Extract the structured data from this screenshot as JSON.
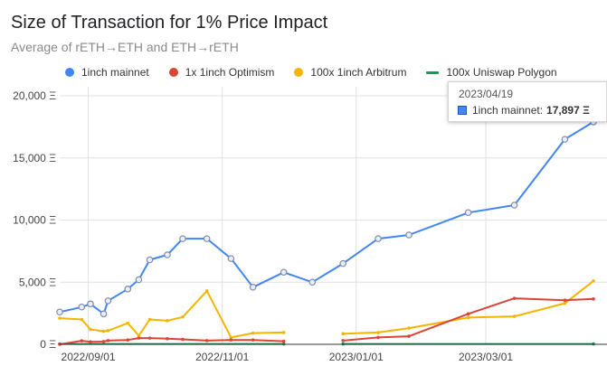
{
  "chart_data": {
    "type": "line",
    "title": "Size of Transaction for 1% Price Impact",
    "subtitle": "Average of rETH→ETH and ETH→rETH",
    "ylim": [
      0,
      20000
    ],
    "y_ticks": [
      "0 Ξ",
      "5,000 Ξ",
      "10,000 Ξ",
      "15,000 Ξ",
      "20,000 Ξ"
    ],
    "y_tick_values": [
      0,
      5000,
      10000,
      15000,
      20000
    ],
    "x_ticks": [
      "2022/09/01",
      "2022/11/01",
      "2023/01/01",
      "2023/03/01"
    ],
    "x_tick_values": [
      "2022-09-01",
      "2022-11-01",
      "2023-01-01",
      "2023-03-01"
    ],
    "xlim": [
      "2022-08-19",
      "2023-04-19"
    ],
    "grid": true,
    "legend": "top",
    "series": [
      {
        "name": "1inch mainnet",
        "color": "#4285f4",
        "markers": true,
        "points": [
          [
            "2022-08-19",
            2600
          ],
          [
            "2022-08-29",
            3000
          ],
          [
            "2022-09-02",
            3250
          ],
          [
            "2022-09-08",
            2450
          ],
          [
            "2022-09-10",
            3500
          ],
          [
            "2022-09-19",
            4450
          ],
          [
            "2022-09-24",
            5200
          ],
          [
            "2022-09-29",
            6800
          ],
          [
            "2022-10-07",
            7200
          ],
          [
            "2022-10-14",
            8500
          ],
          [
            "2022-10-25",
            8500
          ],
          [
            "2022-11-05",
            6900
          ],
          [
            "2022-11-15",
            4600
          ],
          [
            "2022-11-29",
            5800
          ],
          [
            "2022-12-12",
            5000
          ],
          [
            "2022-12-26",
            6500
          ],
          [
            "2023-01-11",
            8500
          ],
          [
            "2023-01-25",
            8800
          ],
          [
            "2023-02-21",
            10600
          ],
          [
            "2023-03-14",
            11200
          ],
          [
            "2023-04-06",
            16500
          ],
          [
            "2023-04-19",
            17897
          ]
        ]
      },
      {
        "name": "1x 1inch Optimism",
        "color": "#db4437",
        "markers": false,
        "segments": [
          [
            [
              "2022-08-19",
              0
            ],
            [
              "2022-08-29",
              280
            ],
            [
              "2022-09-02",
              200
            ],
            [
              "2022-09-08",
              220
            ],
            [
              "2022-09-10",
              300
            ],
            [
              "2022-09-19",
              350
            ],
            [
              "2022-09-24",
              500
            ],
            [
              "2022-09-29",
              500
            ],
            [
              "2022-10-07",
              450
            ],
            [
              "2022-10-14",
              400
            ],
            [
              "2022-10-25",
              300
            ],
            [
              "2022-11-05",
              350
            ],
            [
              "2022-11-15",
              350
            ],
            [
              "2022-11-29",
              250
            ]
          ],
          [
            [
              "2022-12-26",
              300
            ],
            [
              "2023-01-11",
              550
            ],
            [
              "2023-01-25",
              650
            ],
            [
              "2023-02-21",
              2450
            ],
            [
              "2023-03-14",
              3700
            ],
            [
              "2023-04-06",
              3550
            ],
            [
              "2023-04-19",
              3650
            ]
          ]
        ]
      },
      {
        "name": "100x 1inch Arbitrum",
        "color": "#f4b400",
        "markers": false,
        "segments": [
          [
            [
              "2022-08-19",
              2100
            ],
            [
              "2022-08-29",
              2000
            ],
            [
              "2022-09-02",
              1200
            ],
            [
              "2022-09-08",
              1050
            ],
            [
              "2022-09-10",
              1100
            ],
            [
              "2022-09-19",
              1700
            ],
            [
              "2022-09-24",
              700
            ],
            [
              "2022-09-29",
              2000
            ],
            [
              "2022-10-07",
              1900
            ],
            [
              "2022-10-14",
              2200
            ],
            [
              "2022-10-25",
              4300
            ],
            [
              "2022-11-05",
              550
            ],
            [
              "2022-11-15",
              900
            ],
            [
              "2022-11-29",
              950
            ]
          ],
          [
            [
              "2022-12-26",
              850
            ],
            [
              "2023-01-11",
              950
            ],
            [
              "2023-01-25",
              1300
            ],
            [
              "2023-02-21",
              2150
            ],
            [
              "2023-03-14",
              2250
            ],
            [
              "2023-04-06",
              3300
            ],
            [
              "2023-04-19",
              5100
            ]
          ]
        ]
      },
      {
        "name": "100x Uniswap Polygon",
        "color": "#0f9d58",
        "markers": false,
        "segments": [
          [
            [
              "2022-08-19",
              30
            ],
            [
              "2022-11-29",
              30
            ]
          ],
          [
            [
              "2022-12-26",
              30
            ],
            [
              "2023-04-19",
              30
            ]
          ]
        ]
      }
    ]
  },
  "tooltip": {
    "date": "2023/04/19",
    "series_label": "1inch mainnet:",
    "value": "17,897 Ξ",
    "color": "#4285f4"
  }
}
